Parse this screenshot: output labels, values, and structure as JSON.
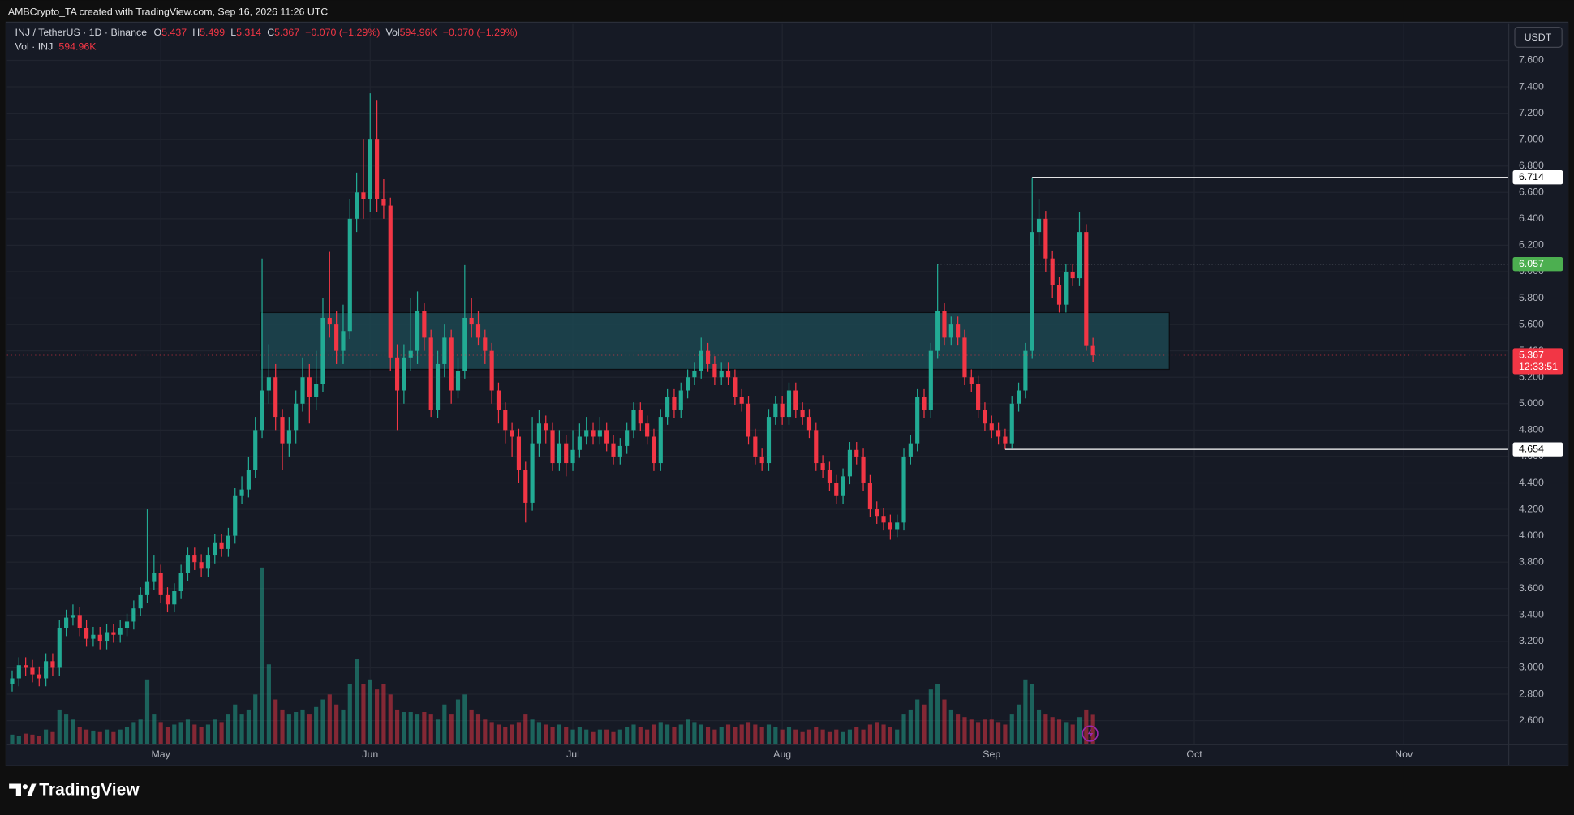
{
  "header": {
    "title": "AMBCrypto_TA created with TradingView.com, Sep 16, 2026 11:26 UTC"
  },
  "footer": {
    "brand": "TradingView"
  },
  "chart_data": {
    "type": "candlestick",
    "currency": "USDT",
    "legend": {
      "symbol": "INJ / TetherUS · 1D · Binance",
      "ohlc": [
        {
          "key": "O",
          "value": "5.437"
        },
        {
          "key": "H",
          "value": "5.499"
        },
        {
          "key": "L",
          "value": "5.314"
        },
        {
          "key": "C",
          "value": "5.367"
        }
      ],
      "change": "−0.070 (−1.29%)",
      "vol_key": "Vol",
      "vol": "594.96K",
      "vol_change": "−0.070 (−1.29%)"
    },
    "volume_legend": {
      "label": "Vol · INJ",
      "value": "594.96K"
    },
    "up_color": "#22ab94",
    "down_color": "#f23645",
    "open": [
      2.88,
      2.92,
      3.02,
      3.0,
      2.95,
      2.92,
      3.05,
      3.0,
      3.3,
      3.38,
      3.4,
      3.3,
      3.22,
      3.25,
      3.2,
      3.27,
      3.25,
      3.3,
      3.35,
      3.45,
      3.55,
      3.65,
      3.72,
      3.55,
      3.48,
      3.58,
      3.72,
      3.85,
      3.8,
      3.75,
      3.85,
      3.95,
      3.9,
      4.0,
      4.3,
      4.35,
      4.5,
      4.8,
      5.1,
      5.2,
      4.9,
      4.7,
      4.8,
      5.0,
      5.2,
      5.05,
      5.15,
      5.65,
      5.6,
      5.4,
      5.55,
      6.4,
      6.6,
      6.55,
      7.0,
      6.55,
      6.5,
      5.35,
      5.1,
      5.35,
      5.4,
      5.7,
      5.5,
      4.95,
      5.3,
      5.5,
      5.1,
      5.25,
      5.65,
      5.6,
      5.5,
      5.4,
      5.1,
      4.95,
      4.8,
      4.75,
      4.5,
      4.25,
      4.7,
      4.85,
      4.8,
      4.55,
      4.7,
      4.55,
      4.65,
      4.75,
      4.8,
      4.75,
      4.8,
      4.7,
      4.6,
      4.68,
      4.8,
      4.95,
      4.85,
      4.75,
      4.55,
      4.9,
      5.05,
      4.95,
      5.1,
      5.2,
      5.25,
      5.4,
      5.3,
      5.2,
      5.25,
      5.2,
      5.05,
      5.0,
      4.75,
      4.6,
      4.55,
      4.9,
      5.0,
      4.9,
      5.1,
      4.95,
      4.9,
      4.8,
      4.55,
      4.5,
      4.4,
      4.3,
      4.45,
      4.65,
      4.6,
      4.4,
      4.2,
      4.15,
      4.1,
      4.05,
      4.1,
      4.6,
      4.7,
      5.05,
      4.95,
      5.4,
      5.7,
      5.5,
      5.6,
      5.5,
      5.2,
      5.15,
      4.95,
      4.85,
      4.8,
      4.75,
      4.7,
      5.0,
      5.1,
      5.4,
      6.3,
      6.4,
      6.1,
      5.9,
      5.75,
      6.0,
      5.95,
      6.3,
      5.437
    ],
    "high": [
      2.98,
      3.08,
      3.08,
      3.06,
      3.01,
      3.11,
      3.11,
      3.36,
      3.44,
      3.48,
      3.46,
      3.36,
      3.31,
      3.31,
      3.33,
      3.33,
      3.36,
      3.41,
      3.51,
      3.61,
      4.2,
      3.85,
      3.78,
      3.61,
      3.64,
      3.78,
      3.91,
      3.91,
      3.86,
      3.91,
      4.01,
      4.01,
      4.06,
      4.36,
      4.45,
      4.6,
      4.9,
      6.1,
      5.45,
      5.3,
      4.96,
      4.9,
      5.1,
      5.35,
      5.3,
      5.4,
      5.8,
      6.15,
      5.7,
      5.75,
      6.55,
      6.75,
      7.0,
      7.35,
      7.3,
      6.7,
      6.56,
      5.45,
      5.45,
      5.8,
      5.85,
      5.76,
      5.56,
      5.4,
      5.6,
      5.56,
      5.35,
      6.05,
      5.8,
      5.7,
      5.56,
      5.46,
      5.16,
      5.01,
      4.86,
      4.81,
      4.56,
      4.9,
      4.95,
      4.91,
      4.86,
      4.8,
      4.76,
      4.8,
      4.85,
      4.9,
      4.86,
      4.9,
      4.86,
      4.76,
      4.74,
      4.86,
      5.01,
      5.01,
      4.91,
      4.81,
      4.96,
      5.11,
      5.11,
      5.16,
      5.26,
      5.31,
      5.5,
      5.46,
      5.36,
      5.31,
      5.31,
      5.26,
      5.11,
      5.06,
      4.81,
      4.66,
      4.96,
      5.06,
      5.06,
      5.16,
      5.16,
      5.01,
      4.96,
      4.86,
      4.61,
      4.56,
      4.46,
      4.51,
      4.71,
      4.71,
      4.66,
      4.46,
      4.26,
      4.21,
      4.16,
      4.16,
      4.66,
      4.76,
      5.11,
      5.11,
      5.46,
      6.06,
      5.76,
      5.66,
      5.66,
      5.56,
      5.26,
      5.21,
      5.01,
      4.91,
      4.86,
      4.81,
      5.06,
      5.16,
      5.46,
      6.714,
      6.55,
      6.46,
      6.16,
      5.96,
      6.06,
      6.06,
      6.45,
      6.36,
      5.499
    ],
    "low": [
      2.82,
      2.86,
      2.94,
      2.89,
      2.86,
      2.86,
      2.94,
      2.94,
      3.24,
      3.32,
      3.24,
      3.16,
      3.16,
      3.14,
      3.14,
      3.19,
      3.19,
      3.24,
      3.29,
      3.39,
      3.49,
      3.59,
      3.49,
      3.42,
      3.42,
      3.52,
      3.66,
      3.74,
      3.69,
      3.69,
      3.79,
      3.84,
      3.84,
      3.94,
      4.24,
      4.29,
      4.44,
      4.74,
      5.0,
      4.8,
      4.5,
      4.6,
      4.7,
      4.94,
      4.85,
      4.95,
      5.09,
      5.5,
      5.3,
      5.3,
      5.49,
      6.3,
      6.4,
      6.45,
      6.45,
      6.4,
      5.25,
      4.8,
      5.0,
      5.25,
      5.3,
      5.4,
      4.9,
      4.89,
      5.2,
      5.0,
      5.04,
      5.19,
      5.5,
      5.44,
      5.3,
      5.0,
      4.85,
      4.7,
      4.6,
      4.4,
      4.1,
      4.19,
      4.6,
      4.7,
      4.49,
      4.49,
      4.45,
      4.49,
      4.59,
      4.69,
      4.69,
      4.69,
      4.64,
      4.54,
      4.54,
      4.62,
      4.74,
      4.79,
      4.69,
      4.49,
      4.49,
      4.84,
      4.89,
      4.89,
      5.04,
      5.14,
      5.19,
      5.24,
      5.14,
      5.14,
      5.14,
      4.99,
      4.94,
      4.69,
      4.54,
      4.49,
      4.49,
      4.84,
      4.84,
      4.84,
      4.89,
      4.84,
      4.74,
      4.49,
      4.44,
      4.34,
      4.24,
      4.24,
      4.39,
      4.54,
      4.34,
      4.14,
      4.09,
      4.04,
      3.97,
      3.99,
      4.04,
      4.54,
      4.64,
      4.89,
      4.89,
      5.34,
      5.44,
      5.44,
      5.44,
      5.14,
      5.09,
      4.89,
      4.79,
      4.74,
      4.69,
      4.654,
      4.66,
      4.94,
      5.04,
      5.34,
      6.2,
      6.0,
      5.8,
      5.69,
      5.69,
      5.89,
      5.89,
      5.4,
      5.314
    ],
    "close": [
      2.92,
      3.02,
      3.0,
      2.95,
      2.92,
      3.05,
      3.0,
      3.3,
      3.38,
      3.4,
      3.3,
      3.22,
      3.25,
      3.2,
      3.27,
      3.25,
      3.3,
      3.35,
      3.45,
      3.55,
      3.65,
      3.72,
      3.55,
      3.48,
      3.58,
      3.72,
      3.85,
      3.8,
      3.75,
      3.85,
      3.95,
      3.9,
      4.0,
      4.3,
      4.35,
      4.5,
      4.8,
      5.1,
      5.2,
      4.9,
      4.7,
      4.8,
      5.0,
      5.2,
      5.05,
      5.15,
      5.65,
      5.6,
      5.4,
      5.55,
      6.4,
      6.6,
      6.55,
      7.0,
      6.55,
      6.5,
      5.35,
      5.1,
      5.35,
      5.4,
      5.7,
      5.5,
      4.95,
      5.3,
      5.5,
      5.1,
      5.25,
      5.65,
      5.6,
      5.5,
      5.4,
      5.1,
      4.95,
      4.8,
      4.75,
      4.5,
      4.25,
      4.7,
      4.85,
      4.8,
      4.55,
      4.7,
      4.55,
      4.65,
      4.75,
      4.8,
      4.75,
      4.8,
      4.7,
      4.6,
      4.68,
      4.8,
      4.95,
      4.85,
      4.75,
      4.55,
      4.9,
      5.05,
      4.95,
      5.1,
      5.2,
      5.25,
      5.4,
      5.3,
      5.2,
      5.25,
      5.2,
      5.05,
      5.0,
      4.75,
      4.6,
      4.55,
      4.9,
      5.0,
      4.9,
      5.1,
      4.95,
      4.9,
      4.8,
      4.55,
      4.5,
      4.4,
      4.3,
      4.45,
      4.65,
      4.6,
      4.4,
      4.2,
      4.15,
      4.1,
      4.05,
      4.1,
      4.6,
      4.7,
      5.05,
      4.95,
      5.4,
      5.7,
      5.5,
      5.6,
      5.5,
      5.2,
      5.15,
      4.95,
      4.85,
      4.8,
      4.75,
      4.7,
      5.0,
      5.1,
      5.4,
      6.3,
      6.4,
      6.1,
      5.9,
      5.75,
      6.0,
      5.95,
      6.3,
      5.437,
      5.367
    ],
    "volume": [
      200,
      180,
      220,
      200,
      180,
      300,
      250,
      700,
      600,
      500,
      350,
      300,
      280,
      250,
      300,
      250,
      300,
      350,
      450,
      500,
      1300,
      600,
      450,
      350,
      400,
      450,
      500,
      400,
      350,
      400,
      500,
      450,
      600,
      800,
      600,
      700,
      1000,
      3530,
      1600,
      900,
      700,
      600,
      650,
      700,
      600,
      750,
      900,
      1000,
      800,
      700,
      1200,
      1700,
      1200,
      1300,
      1100,
      1200,
      1000,
      700,
      650,
      650,
      600,
      650,
      600,
      500,
      800,
      600,
      900,
      1000,
      700,
      600,
      500,
      450,
      400,
      350,
      400,
      450,
      600,
      500,
      450,
      400,
      350,
      400,
      350,
      300,
      350,
      300,
      250,
      300,
      300,
      250,
      300,
      350,
      400,
      350,
      300,
      400,
      450,
      400,
      350,
      400,
      500,
      450,
      400,
      350,
      300,
      350,
      400,
      350,
      400,
      450,
      400,
      350,
      400,
      350,
      300,
      350,
      300,
      250,
      300,
      350,
      300,
      250,
      300,
      250,
      300,
      350,
      300,
      400,
      450,
      400,
      350,
      300,
      600,
      700,
      900,
      800,
      1100,
      1200,
      900,
      700,
      600,
      550,
      500,
      450,
      500,
      500,
      450,
      400,
      600,
      800,
      1300,
      1200,
      700,
      600,
      550,
      500,
      450,
      400,
      550,
      700,
      594.96
    ],
    "vlim": [
      0,
      3600
    ],
    "xlim": [
      -1.8,
      221.1
    ],
    "xticks": [
      {
        "value": 22,
        "label": "May"
      },
      {
        "value": 53,
        "label": "Jun"
      },
      {
        "value": 83,
        "label": "Jul"
      },
      {
        "value": 114,
        "label": "Aug"
      },
      {
        "value": 145,
        "label": "Sep"
      },
      {
        "value": 175,
        "label": "Oct"
      },
      {
        "value": 206,
        "label": "Nov"
      }
    ],
    "ylim": [
      2.418,
      7.889
    ],
    "yticks": [
      {
        "value": 2.6,
        "label": "2.600"
      },
      {
        "value": 2.8,
        "label": "2.800"
      },
      {
        "value": 3.0,
        "label": "3.000"
      },
      {
        "value": 3.2,
        "label": "3.200"
      },
      {
        "value": 3.4,
        "label": "3.400"
      },
      {
        "value": 3.6,
        "label": "3.600"
      },
      {
        "value": 3.8,
        "label": "3.800"
      },
      {
        "value": 4.0,
        "label": "4.000"
      },
      {
        "value": 4.2,
        "label": "4.200"
      },
      {
        "value": 4.4,
        "label": "4.400"
      },
      {
        "value": 4.6,
        "label": "4.600"
      },
      {
        "value": 4.8,
        "label": "4.800"
      },
      {
        "value": 5.0,
        "label": "5.000"
      },
      {
        "value": 5.2,
        "label": "5.200"
      },
      {
        "value": 5.4,
        "label": "5.400"
      },
      {
        "value": 5.6,
        "label": "5.600"
      },
      {
        "value": 5.8,
        "label": "5.800"
      },
      {
        "value": 6.0,
        "label": "6.000"
      },
      {
        "value": 6.2,
        "label": "6.200"
      },
      {
        "value": 6.4,
        "label": "6.400"
      },
      {
        "value": 6.6,
        "label": "6.600"
      },
      {
        "value": 6.8,
        "label": "6.800"
      },
      {
        "value": 7.0,
        "label": "7.000"
      },
      {
        "value": 7.2,
        "label": "7.200"
      },
      {
        "value": 7.4,
        "label": "7.400"
      },
      {
        "value": 7.6,
        "label": "7.600"
      }
    ],
    "grid": true,
    "zone": {
      "x": [
        36.8,
        171.3
      ],
      "y": [
        5.26,
        5.69
      ],
      "color": "#1c4650"
    },
    "price_lines": [
      {
        "value": 6.714,
        "from": 151,
        "style": "solid",
        "color": "#ffffff",
        "box": "#ffffff",
        "text_color": "#000000"
      },
      {
        "value": 6.057,
        "from": 137,
        "style": "dotted",
        "color": "#8a8f99",
        "box": "#4caf50",
        "text_color": "#ffffff"
      },
      {
        "value": 4.654,
        "from": 147,
        "style": "solid",
        "color": "#ffffff",
        "box": "#ffffff",
        "text_color": "#000000"
      }
    ],
    "last_price": {
      "value": 5.367,
      "countdown": "12:33:51",
      "box": "#f23645"
    }
  }
}
